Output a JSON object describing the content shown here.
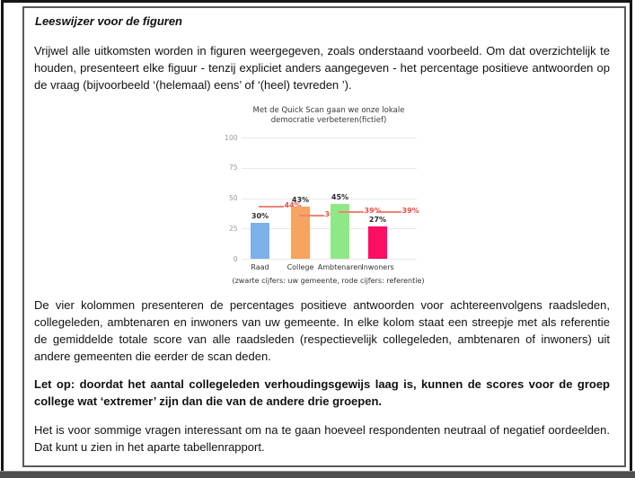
{
  "document": {
    "title": "Leeswijzer voor de figuren",
    "paragraph1": "Vrijwel alle uitkomsten worden in figuren weergegeven, zoals onderstaand voorbeeld. Om dat overzichtelijk te houden, presenteert elke figuur - tenzij expliciet anders aangegeven - het percentage positieve antwoorden op de vraag (bijvoorbeeld ‘(helemaal) eens’ of ‘(heel) tevreden ’).",
    "paragraph2": "De vier kolommen presenteren de percentages positieve antwoorden voor achtereenvolgens raadsleden, collegeleden, ambtenaren en inwoners van uw gemeente. In elke kolom staat een streepje met als referentie de gemiddelde totale score van alle raadsleden (respectievelijk collegeleden, ambtenaren of inwoners) uit andere gemeenten die eerder de scan deden.",
    "note_bold": "Let op: doordat het aantal collegeleden verhoudingsgewijs laag is, kunnen de scores voor de groep college wat ‘extremer’ zijn dan die van de andere drie groepen.",
    "paragraph4": "Het is voor sommige vragen interessant om na te gaan hoeveel respondenten neutraal of negatief oordeelden. Dat kunt u zien in het aparte tabellenrapport."
  },
  "chart_data": {
    "type": "bar",
    "title": "Met de Quick Scan gaan we onze lokale democratie verbeteren(fictief)",
    "caption": "(zwarte cijfers: uw gemeente, rode cijfers: referentie)",
    "categories": [
      "Raad",
      "College",
      "Ambtenaren",
      "Inwoners"
    ],
    "series": [
      {
        "name": "uw gemeente",
        "type": "bar",
        "values": [
          30,
          43,
          45,
          27
        ],
        "colors": [
          "#7cb2e9",
          "#f6a45f",
          "#8fe886",
          "#fa0f62"
        ]
      },
      {
        "name": "referentie",
        "type": "reference-tick",
        "values": [
          44,
          36,
          39,
          39
        ],
        "color": "#ee4f45"
      }
    ],
    "value_labels": [
      "30%",
      "43%",
      "45%",
      "27%"
    ],
    "reference_labels": [
      "44%",
      "36%",
      "39%",
      "39%"
    ],
    "ylim": [
      0,
      100
    ],
    "yticks": [
      0,
      25,
      50,
      75,
      100
    ],
    "grid": true,
    "legend_position": "none"
  }
}
